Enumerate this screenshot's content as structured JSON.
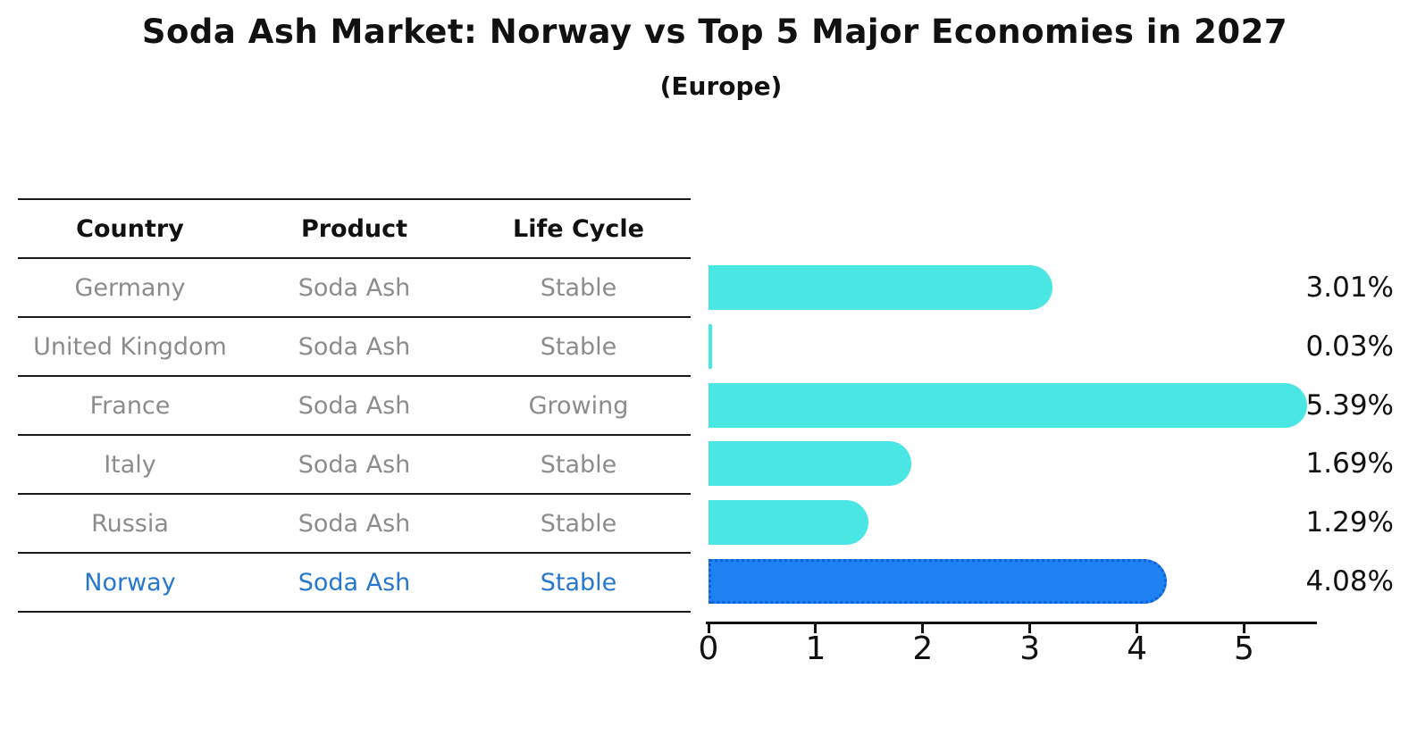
{
  "header": {
    "title": "Soda Ash Market: Norway vs Top 5 Major Economies in 2027",
    "subtitle": "(Europe)"
  },
  "table": {
    "headers": {
      "country": "Country",
      "product": "Product",
      "life_cycle": "Life Cycle"
    },
    "rows": [
      {
        "country": "Germany",
        "product": "Soda Ash",
        "life_cycle": "Stable",
        "highlight": false
      },
      {
        "country": "United Kingdom",
        "product": "Soda Ash",
        "life_cycle": "Stable",
        "highlight": false
      },
      {
        "country": "France",
        "product": "Soda Ash",
        "life_cycle": "Growing",
        "highlight": false
      },
      {
        "country": "Italy",
        "product": "Soda Ash",
        "life_cycle": "Stable",
        "highlight": false
      },
      {
        "country": "Russia",
        "product": "Soda Ash",
        "life_cycle": "Stable",
        "highlight": false
      },
      {
        "country": "Norway",
        "product": "Soda Ash",
        "life_cycle": "Stable",
        "highlight": true
      }
    ]
  },
  "chart_data": {
    "type": "bar",
    "orientation": "horizontal",
    "title": "Soda Ash Market: Norway vs Top 5 Major Economies in 2027",
    "subtitle": "(Europe)",
    "categories": [
      "Germany",
      "United Kingdom",
      "France",
      "Italy",
      "Russia",
      "Norway"
    ],
    "values": [
      3.01,
      0.03,
      5.39,
      1.69,
      1.29,
      4.08
    ],
    "value_labels": [
      "3.01%",
      "0.03%",
      "5.39%",
      "1.69%",
      "1.29%",
      "4.08%"
    ],
    "highlight_index": 5,
    "x_ticks": [
      "0",
      "1",
      "2",
      "3",
      "4",
      "5"
    ],
    "xlim": [
      0,
      5.68
    ],
    "grid": false,
    "legend": "none",
    "bar_color": "#4AE6E4",
    "highlight_bar_color": "#1E82F2",
    "highlight_text_color": "#2577D0",
    "axis_color": "#111111",
    "table_text_color": "#8C8C8C"
  }
}
